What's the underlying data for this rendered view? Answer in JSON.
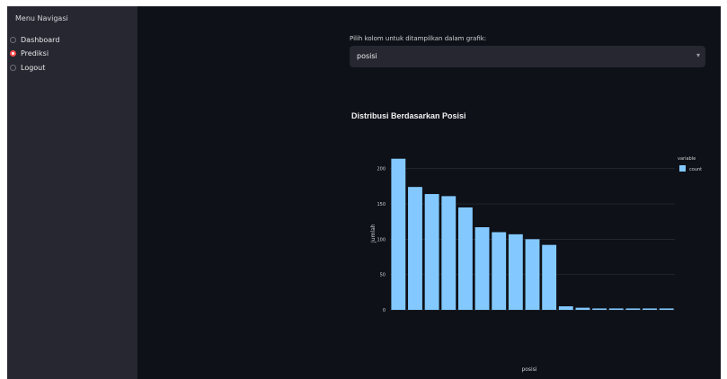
{
  "sidebar": {
    "title": "Menu Navigasi",
    "items": [
      {
        "label": "Dashboard",
        "selected": false
      },
      {
        "label": "Prediksi",
        "selected": true
      },
      {
        "label": "Logout",
        "selected": false
      }
    ]
  },
  "main": {
    "select_label": "Pilih kolom untuk ditampilkan dalam grafik:",
    "select_value": "posisi",
    "chevron_icon": "chevron-down-icon"
  },
  "colors": {
    "app_bg": "#0e1117",
    "sidebar_bg": "#262730",
    "accent": "#ff4b4b",
    "bar": "#83c9ff"
  },
  "chart_data": {
    "type": "bar",
    "title": "Distribusi Berdasarkan Posisi",
    "xlabel": "posisi",
    "ylabel": "Jumlah",
    "legend_title": "variable",
    "legend_placement": "top-right",
    "ylim": [
      0,
      220
    ],
    "yticks": [
      0,
      50,
      100,
      150,
      200
    ],
    "grid": true,
    "categories": [
      "",
      "",
      "",
      "",
      "",
      "",
      "",
      "",
      "",
      "",
      "",
      "",
      "",
      "",
      "",
      "",
      ""
    ],
    "series": [
      {
        "name": "count",
        "values": [
          214,
          174,
          164,
          161,
          145,
          117,
          110,
          107,
          100,
          92,
          5,
          3,
          2,
          2,
          2,
          2,
          2
        ]
      }
    ]
  }
}
